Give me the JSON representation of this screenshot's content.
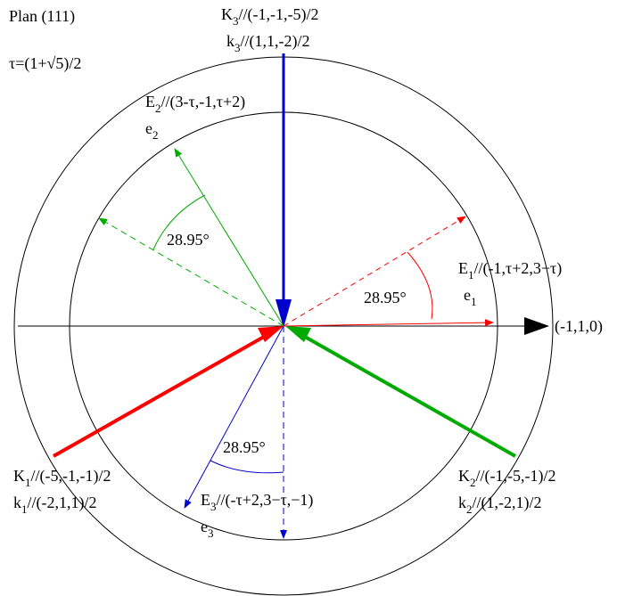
{
  "title": "Plan (111)",
  "tau_definition": "τ=(1+√5)/2",
  "axis_label": "(-1,1,0)",
  "angle_label": "28.95°",
  "vectors": {
    "K3": {
      "name": "K",
      "sub": "3",
      "value": "//(-1,-1,-5)/2"
    },
    "k3": {
      "name": "k",
      "sub": "3",
      "value": "//(1,1,-2)/2"
    },
    "K1": {
      "name": "K",
      "sub": "1",
      "value": "//(-5,-1,-1)/2"
    },
    "k1": {
      "name": "k",
      "sub": "1",
      "value": "//(-2,1,1)/2"
    },
    "K2": {
      "name": "K",
      "sub": "2",
      "value": "//(-1,-5,-1)/2"
    },
    "k2": {
      "name": "k",
      "sub": "2",
      "value": "//(1,-2,1)/2"
    },
    "E2": {
      "name": "E",
      "sub": "2",
      "value": "//(3-τ,-1,τ+2)"
    },
    "e2": {
      "name": "e",
      "sub": "2",
      "value": ""
    },
    "E1": {
      "name": "E",
      "sub": "1",
      "value": "//(-1,τ+2,3−τ)"
    },
    "e1": {
      "name": "e",
      "sub": "1",
      "value": ""
    },
    "E3": {
      "name": "E",
      "sub": "3",
      "value": "//(-τ+2,3−τ,−1)"
    },
    "e3": {
      "name": "e",
      "sub": "3",
      "value": ""
    }
  },
  "colors": {
    "red": "#ff0000",
    "green": "#00aa00",
    "blue": "#0000cc",
    "black": "#000000"
  }
}
